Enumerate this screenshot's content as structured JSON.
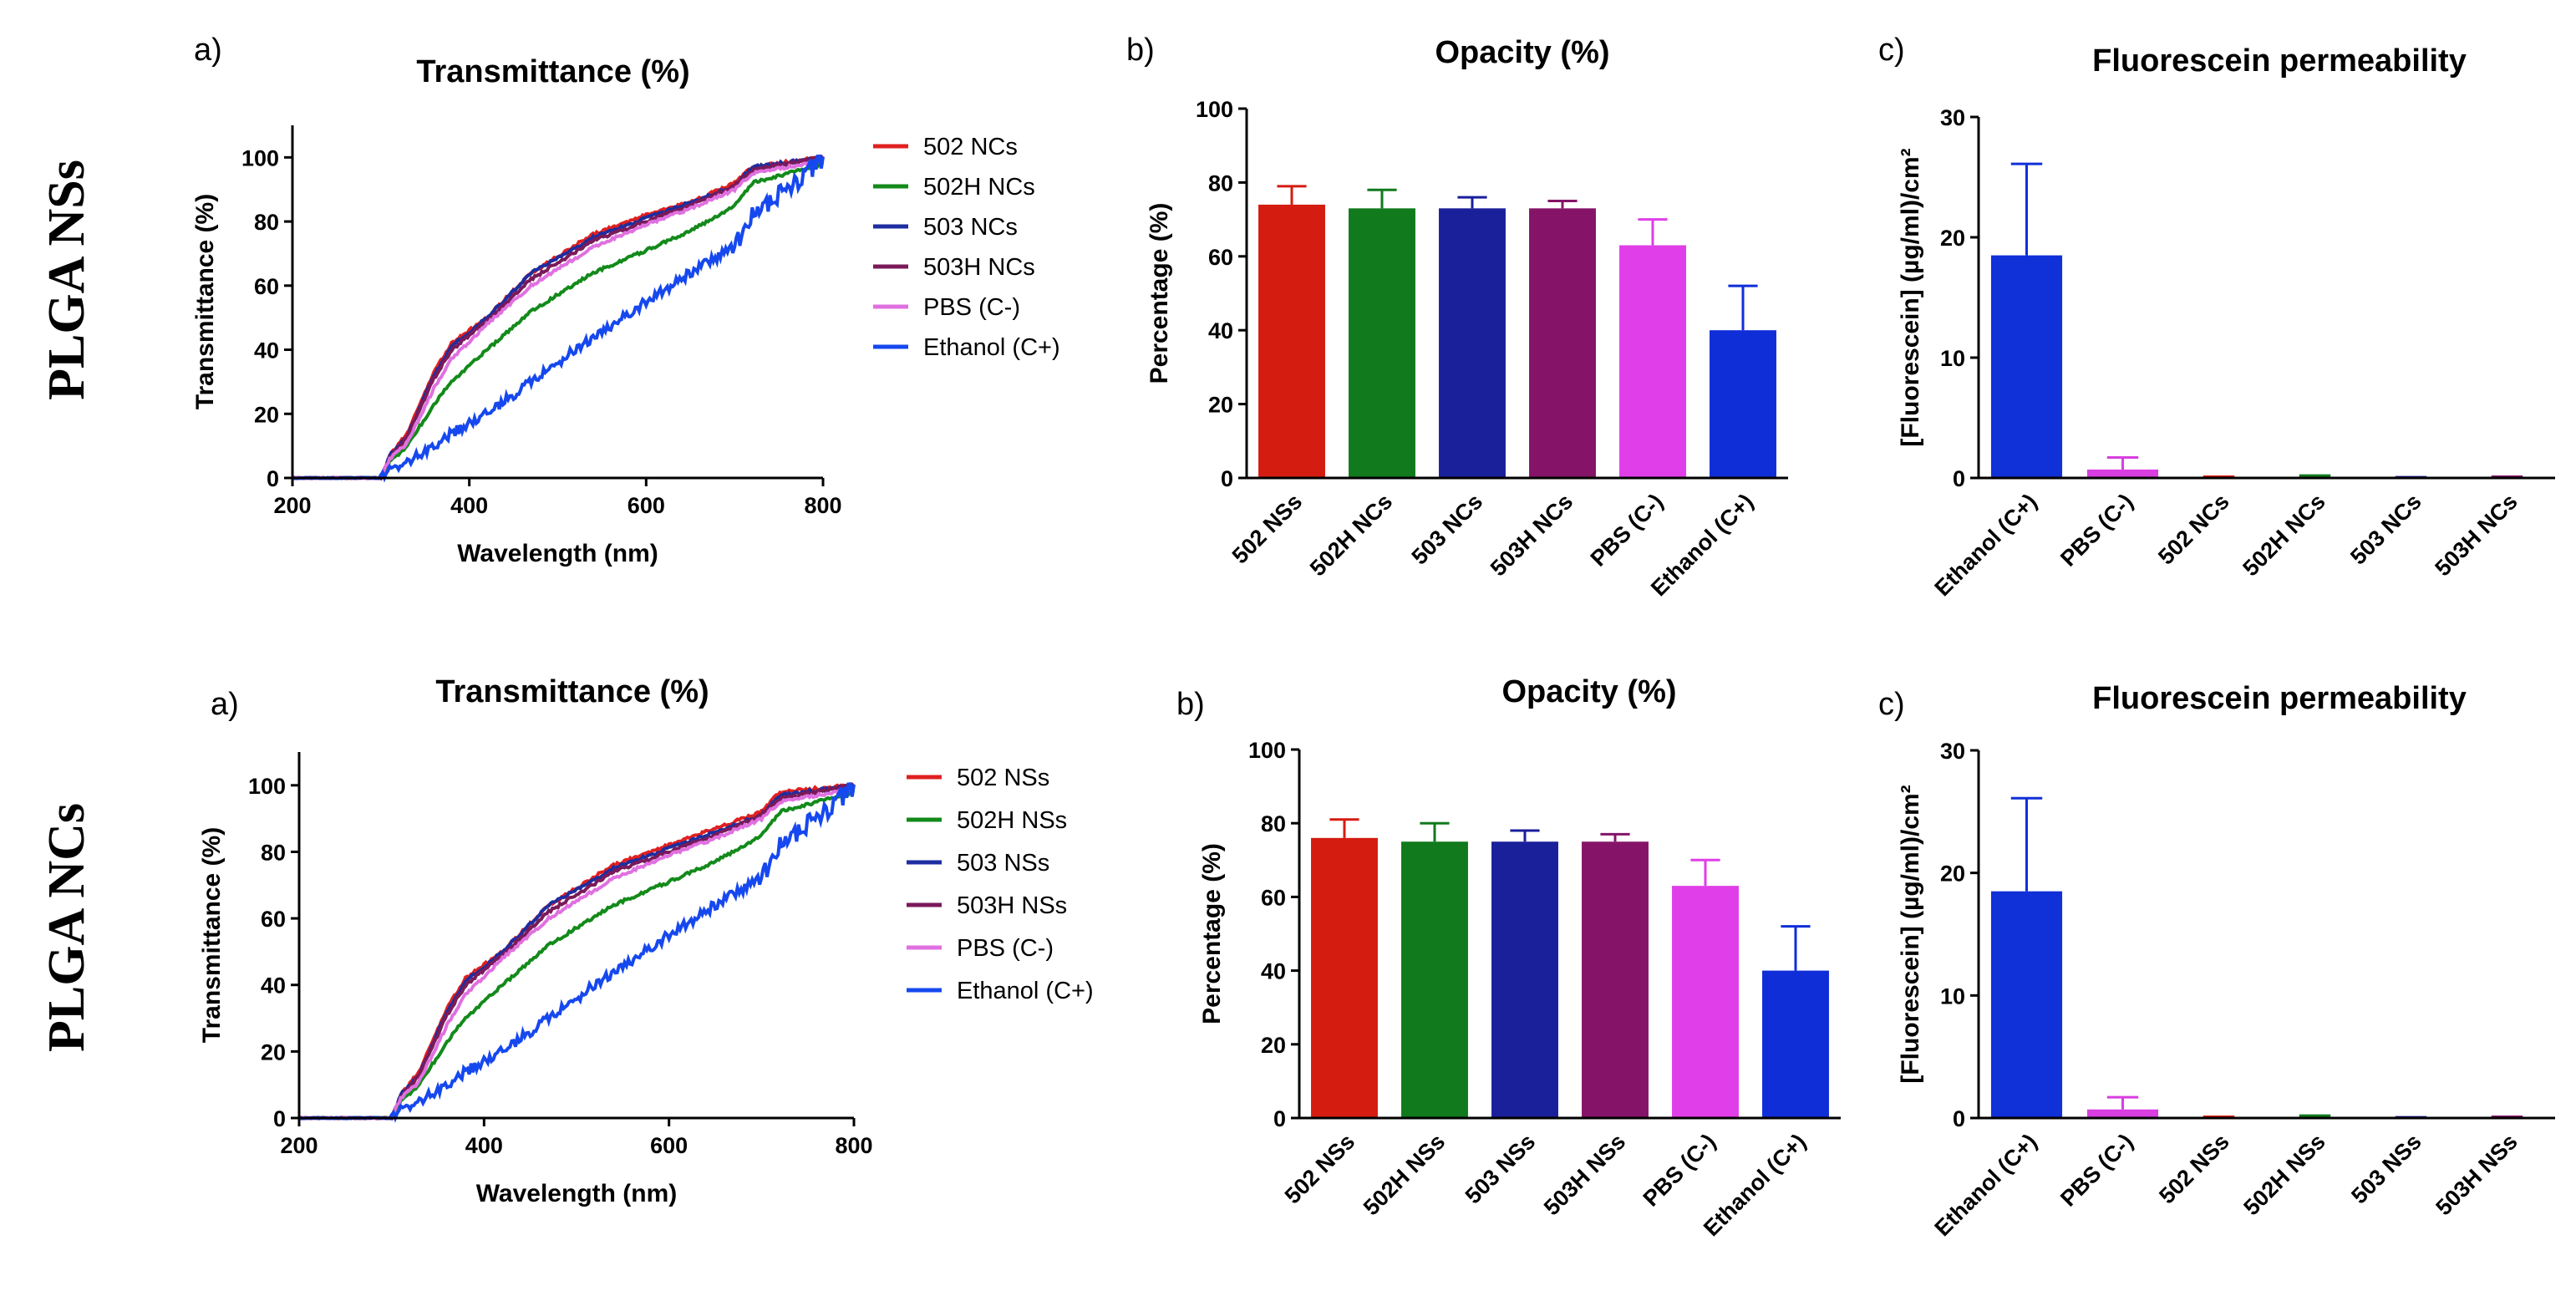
{
  "rows": [
    {
      "label": "PLGA NSs"
    },
    {
      "label": "PLGA NCs"
    }
  ],
  "chart_data": [
    {
      "type": "line",
      "row": 0,
      "panel_letter": "a)",
      "title": "Transmittance (%)",
      "xlabel": "Wavelength (nm)",
      "ylabel": "Transmittance (%)",
      "xlim": [
        200,
        800
      ],
      "ylim": [
        0,
        110
      ],
      "xticks": [
        200,
        400,
        600,
        800
      ],
      "yticks": [
        0,
        20,
        40,
        60,
        80,
        100
      ],
      "legend_position": "right",
      "series": [
        {
          "name": "502 NCs",
          "color": "#e02020",
          "x": [
            200,
            300,
            310,
            330,
            360,
            380,
            420,
            470,
            540,
            600,
            650,
            700,
            720,
            800
          ],
          "y": [
            0,
            0,
            7,
            14,
            33,
            42,
            50,
            64,
            76,
            82,
            86,
            92,
            97,
            100
          ]
        },
        {
          "name": "502H NCs",
          "color": "#138a1a",
          "x": [
            200,
            300,
            310,
            330,
            360,
            380,
            420,
            470,
            540,
            600,
            650,
            700,
            720,
            800
          ],
          "y": [
            0,
            0,
            5,
            10,
            23,
            30,
            40,
            52,
            64,
            71,
            77,
            85,
            92,
            98
          ]
        },
        {
          "name": "503 NCs",
          "color": "#1e2da0",
          "x": [
            200,
            300,
            310,
            330,
            360,
            380,
            420,
            470,
            540,
            600,
            650,
            700,
            720,
            800
          ],
          "y": [
            0,
            0,
            7,
            13,
            32,
            41,
            50,
            64,
            75,
            81,
            86,
            91,
            97,
            100
          ]
        },
        {
          "name": "503H NCs",
          "color": "#7a1a5a",
          "x": [
            200,
            300,
            310,
            330,
            360,
            380,
            420,
            470,
            540,
            600,
            650,
            700,
            720,
            800
          ],
          "y": [
            0,
            0,
            6,
            13,
            31,
            40,
            49,
            62,
            74,
            80,
            85,
            91,
            96,
            100
          ]
        },
        {
          "name": "PBS (C-)",
          "color": "#e070e0",
          "x": [
            200,
            300,
            310,
            330,
            360,
            380,
            420,
            470,
            540,
            600,
            650,
            700,
            720,
            800
          ],
          "y": [
            0,
            0,
            6,
            11,
            28,
            37,
            48,
            60,
            72,
            79,
            84,
            90,
            95,
            99
          ]
        },
        {
          "name": "Ethanol (C+)",
          "color": "#1648ef",
          "x": [
            200,
            300,
            310,
            330,
            360,
            380,
            420,
            470,
            540,
            600,
            650,
            700,
            720,
            760,
            800
          ],
          "y": [
            0,
            0,
            2,
            5,
            10,
            14,
            20,
            30,
            44,
            55,
            64,
            72,
            82,
            90,
            100
          ]
        }
      ]
    },
    {
      "type": "bar",
      "row": 0,
      "panel_letter": "b)",
      "title": "Opacity (%)",
      "ylabel": "Percentage (%)",
      "ylim": [
        0,
        100
      ],
      "yticks": [
        0,
        20,
        40,
        60,
        80,
        100
      ],
      "categories": [
        "502 NSs",
        "502H NCs",
        "503 NCs",
        "503H NCs",
        "PBS (C-)",
        "Ethanol (C+)"
      ],
      "values": [
        74,
        73,
        73,
        73,
        63,
        40
      ],
      "errors": [
        5,
        5,
        3,
        2,
        7,
        12
      ],
      "colors": [
        "#d41c10",
        "#107a1c",
        "#1a1f9a",
        "#851468",
        "#df3ee8",
        "#0f2ed8"
      ]
    },
    {
      "type": "bar",
      "row": 0,
      "panel_letter": "c)",
      "title": "Fluorescein permeability",
      "ylabel": "[Fluorescein] (µg/ml)/cm²",
      "ylim": [
        0,
        30
      ],
      "yticks": [
        0,
        10,
        20,
        30
      ],
      "categories": [
        "Ethanol (C+)",
        "PBS (C-)",
        "502 NCs",
        "502H NCs",
        "503 NCs",
        "503H NCs"
      ],
      "values": [
        18.5,
        0.7,
        0.05,
        0.1,
        0.03,
        0.05
      ],
      "errors": [
        7.6,
        1.0,
        0.05,
        0.1,
        0.03,
        0.05
      ],
      "colors": [
        "#1030d8",
        "#d83ee0",
        "#d41c10",
        "#107a1c",
        "#1a1f9a",
        "#851468"
      ]
    },
    {
      "type": "line",
      "row": 1,
      "panel_letter": "a)",
      "title": "Transmittance (%)",
      "xlabel": "Wavelength (nm)",
      "ylabel": "Transmittance (%)",
      "xlim": [
        200,
        800
      ],
      "ylim": [
        0,
        110
      ],
      "xticks": [
        200,
        400,
        600,
        800
      ],
      "yticks": [
        0,
        20,
        40,
        60,
        80,
        100
      ],
      "legend_position": "right",
      "series": [
        {
          "name": "502 NSs",
          "color": "#e02020",
          "x": [
            200,
            300,
            310,
            330,
            360,
            380,
            420,
            470,
            540,
            600,
            650,
            700,
            720,
            800
          ],
          "y": [
            0,
            0,
            7,
            14,
            33,
            42,
            50,
            64,
            76,
            82,
            87,
            92,
            98,
            100
          ]
        },
        {
          "name": "502H NSs",
          "color": "#138a1a",
          "x": [
            200,
            300,
            310,
            330,
            360,
            380,
            420,
            470,
            540,
            600,
            650,
            700,
            720,
            800
          ],
          "y": [
            0,
            0,
            5,
            10,
            23,
            30,
            40,
            52,
            64,
            71,
            77,
            85,
            92,
            98
          ]
        },
        {
          "name": "503 NSs",
          "color": "#1e2da0",
          "x": [
            200,
            300,
            310,
            330,
            360,
            380,
            420,
            470,
            540,
            600,
            650,
            700,
            720,
            800
          ],
          "y": [
            0,
            0,
            7,
            13,
            32,
            41,
            50,
            64,
            75,
            81,
            86,
            91,
            97,
            100
          ]
        },
        {
          "name": "503H NSs",
          "color": "#7a1a5a",
          "x": [
            200,
            300,
            310,
            330,
            360,
            380,
            420,
            470,
            540,
            600,
            650,
            700,
            720,
            800
          ],
          "y": [
            0,
            0,
            6,
            13,
            31,
            40,
            49,
            62,
            74,
            80,
            85,
            91,
            96,
            100
          ]
        },
        {
          "name": "PBS (C-)",
          "color": "#e070e0",
          "x": [
            200,
            300,
            310,
            330,
            360,
            380,
            420,
            470,
            540,
            600,
            650,
            700,
            720,
            800
          ],
          "y": [
            0,
            0,
            6,
            11,
            28,
            37,
            48,
            60,
            72,
            79,
            84,
            90,
            95,
            99
          ]
        },
        {
          "name": "Ethanol (C+)",
          "color": "#1648ef",
          "x": [
            200,
            300,
            310,
            330,
            360,
            380,
            420,
            470,
            540,
            600,
            650,
            700,
            720,
            760,
            800
          ],
          "y": [
            0,
            0,
            2,
            5,
            10,
            14,
            20,
            30,
            44,
            55,
            64,
            72,
            82,
            90,
            100
          ]
        }
      ]
    },
    {
      "type": "bar",
      "row": 1,
      "panel_letter": "b)",
      "title": "Opacity (%)",
      "ylabel": "Percentage (%)",
      "ylim": [
        0,
        100
      ],
      "yticks": [
        0,
        20,
        40,
        60,
        80,
        100
      ],
      "categories": [
        "502 NSs",
        "502H NSs",
        "503 NSs",
        "503H NSs",
        "PBS (C-)",
        "Ethanol (C+)"
      ],
      "values": [
        76,
        75,
        75,
        75,
        63,
        40
      ],
      "errors": [
        5,
        5,
        3,
        2,
        7,
        12
      ],
      "colors": [
        "#d41c10",
        "#107a1c",
        "#1a1f9a",
        "#851468",
        "#df3ee8",
        "#0f2ed8"
      ]
    },
    {
      "type": "bar",
      "row": 1,
      "panel_letter": "c)",
      "title": "Fluorescein permeability",
      "ylabel": "[Fluorescein] (µg/ml)/cm²",
      "ylim": [
        0,
        30
      ],
      "yticks": [
        0,
        10,
        20,
        30
      ],
      "categories": [
        "Ethanol (C+)",
        "PBS (C-)",
        "502 NSs",
        "502H NSs",
        "503 NSs",
        "503H NSs"
      ],
      "values": [
        18.5,
        0.7,
        0.05,
        0.1,
        0.03,
        0.05
      ],
      "errors": [
        7.6,
        1.0,
        0.05,
        0.1,
        0.03,
        0.05
      ],
      "colors": [
        "#1030d8",
        "#d83ee0",
        "#d41c10",
        "#107a1c",
        "#1a1f9a",
        "#851468"
      ]
    }
  ]
}
